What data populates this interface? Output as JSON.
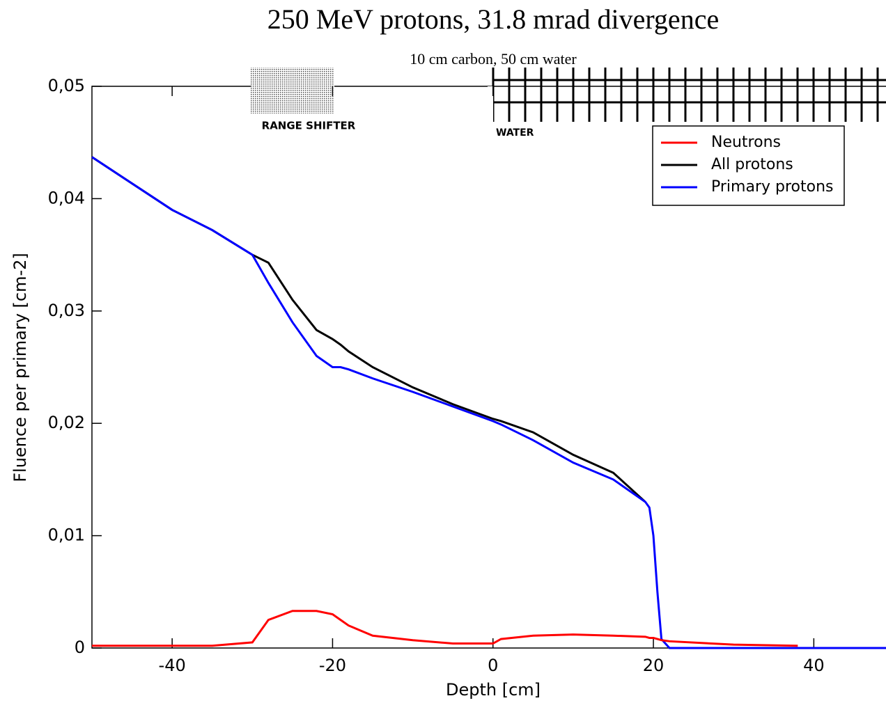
{
  "chart_data": {
    "type": "line",
    "title": "250 MeV protons, 31.8 mrad divergence",
    "subtitle": "10 cm carbon, 50 cm water",
    "x_label": "Depth [cm]",
    "y_label": "Fluence per primary [cm-2]",
    "annotations": [
      "RANGE SHIFTER",
      "WATER"
    ],
    "x": [
      -50,
      -40,
      -35,
      -30,
      -28,
      -25,
      -22,
      -20,
      -19,
      -18,
      -15,
      -10,
      -5,
      0,
      1,
      5,
      10,
      15,
      19,
      19.5,
      20,
      20.5,
      21,
      22,
      30,
      38,
      49
    ],
    "series": [
      {
        "name": "Neutrons",
        "color": "#ff0000",
        "values": [
          0.0002,
          0.0002,
          0.0002,
          0.0005,
          0.0025,
          0.0033,
          0.0033,
          0.003,
          0.0025,
          0.002,
          0.0011,
          0.0007,
          0.0004,
          0.0004,
          0.0008,
          0.0011,
          0.0012,
          0.0011,
          0.001,
          0.0009,
          0.0009,
          0.0008,
          0.0007,
          0.0006,
          0.0003,
          0.0002,
          null
        ]
      },
      {
        "name": "All protons",
        "color": "#000000",
        "values": [
          0.0437,
          0.039,
          0.0372,
          0.035,
          0.0343,
          0.031,
          0.0283,
          0.0275,
          0.027,
          0.0264,
          0.025,
          0.0232,
          0.0217,
          0.0204,
          0.0202,
          0.0192,
          0.0172,
          0.0156,
          0.013,
          null,
          null,
          null,
          null,
          null,
          null,
          null,
          null
        ]
      },
      {
        "name": "Primary protons",
        "color": "#0000ff",
        "values": [
          0.0437,
          0.039,
          0.0372,
          0.035,
          0.0325,
          0.029,
          0.026,
          0.025,
          0.025,
          0.0248,
          0.024,
          0.0228,
          0.0215,
          0.0202,
          0.0199,
          0.0185,
          0.0165,
          0.015,
          0.013,
          0.0125,
          0.01,
          0.005,
          0.0008,
          0,
          0,
          0,
          0
        ]
      }
    ],
    "xlim": [
      -50,
      49
    ],
    "ylim": [
      0,
      0.05
    ],
    "xticks": [
      -40,
      -20,
      0,
      20,
      40
    ],
    "yticks": [
      0,
      {
        "value": 0.01,
        "label": "0,01"
      },
      {
        "value": 0.02,
        "label": "0,02"
      },
      {
        "value": 0.03,
        "label": "0,03"
      },
      {
        "value": 0.04,
        "label": "0,04"
      },
      {
        "value": 0.05,
        "label": "0,05"
      }
    ],
    "legend": "top-right"
  }
}
